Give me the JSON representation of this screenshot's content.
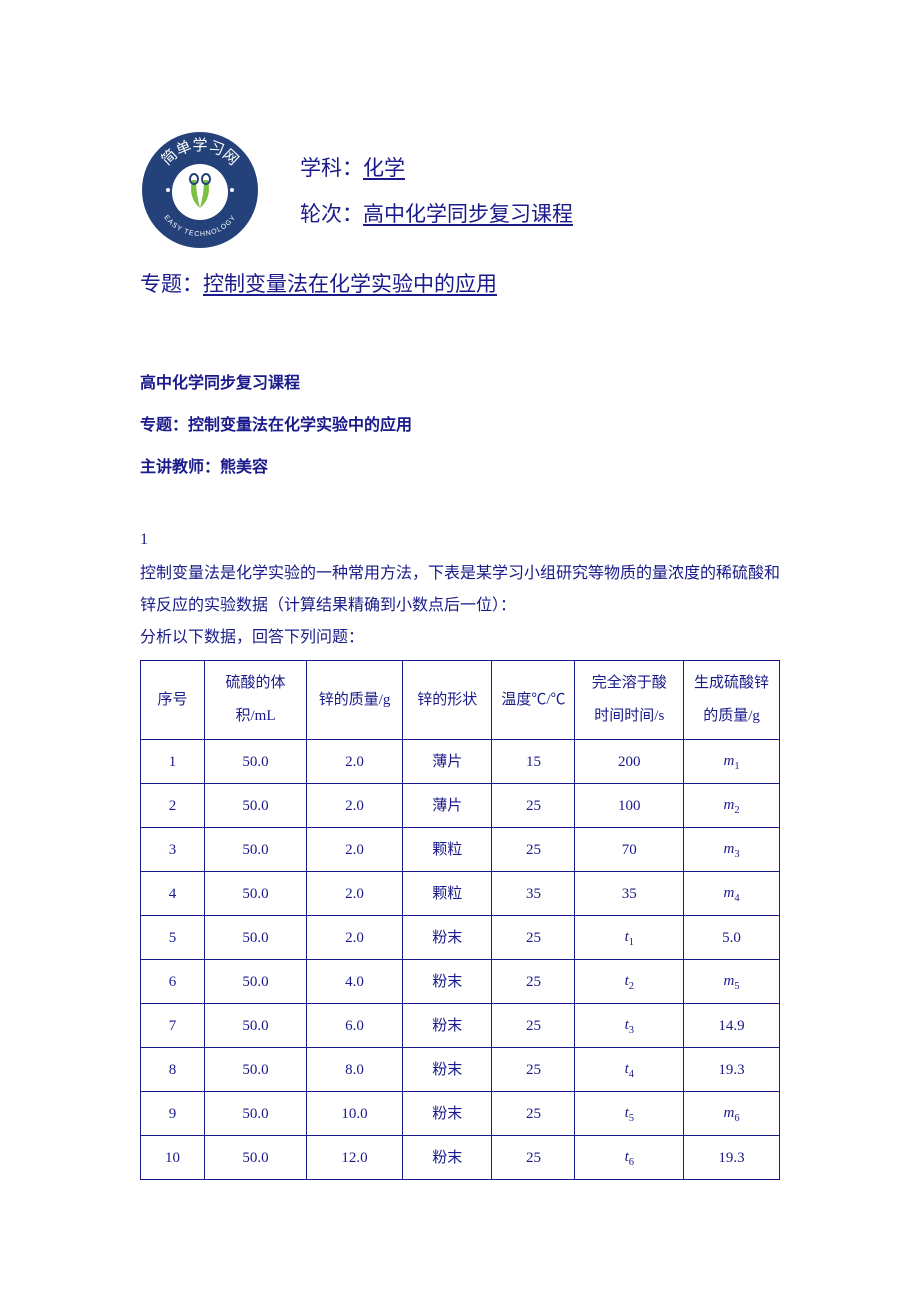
{
  "colors": {
    "text": "#1a1a8a",
    "logo_bg": "#25417a",
    "logo_inner": "#ffffff",
    "logo_accent": "#7bc043",
    "border": "#1a1a8a",
    "background": "#ffffff"
  },
  "logo": {
    "top_text": "简单学习网",
    "bottom_text": "EASY TECHNOLOGY"
  },
  "header": {
    "subject_label": "学科：",
    "subject_value": "化学",
    "round_label": "轮次：",
    "round_value": "高中化学同步复习课程",
    "topic_label": "专题：",
    "topic_value": "控制变量法在化学实验中的应用"
  },
  "meta": {
    "course": "高中化学同步复习课程",
    "topic_line": "专题：控制变量法在化学实验中的应用",
    "teacher_line": "主讲教师：熊美容"
  },
  "question": {
    "number": "1",
    "p1": "控制变量法是化学实验的一种常用方法，下表是某学习小组研究等物质的量浓度的稀硫酸和锌反应的实验数据（计算结果精确到小数点后一位）：",
    "p2": "分析以下数据，回答下列问题："
  },
  "table": {
    "columns": [
      "序号",
      "硫酸的体积/mL",
      "锌的质量/g",
      "锌的形状",
      "温度℃/℃",
      "完全溶于酸时间时间/s",
      "生成硫酸锌的质量/g"
    ],
    "col_widths": [
      "10%",
      "16%",
      "15%",
      "14%",
      "13%",
      "17%",
      "15%"
    ],
    "rows": [
      {
        "idx": "1",
        "vol": "50.0",
        "mass": "2.0",
        "shape": "薄片",
        "temp": "15",
        "time": "200",
        "prod": {
          "var": "m",
          "sub": "1"
        }
      },
      {
        "idx": "2",
        "vol": "50.0",
        "mass": "2.0",
        "shape": "薄片",
        "temp": "25",
        "time": "100",
        "prod": {
          "var": "m",
          "sub": "2"
        }
      },
      {
        "idx": "3",
        "vol": "50.0",
        "mass": "2.0",
        "shape": "颗粒",
        "temp": "25",
        "time": "70",
        "prod": {
          "var": "m",
          "sub": "3"
        }
      },
      {
        "idx": "4",
        "vol": "50.0",
        "mass": "2.0",
        "shape": "颗粒",
        "temp": "35",
        "time": "35",
        "prod": {
          "var": "m",
          "sub": "4"
        }
      },
      {
        "idx": "5",
        "vol": "50.0",
        "mass": "2.0",
        "shape": "粉末",
        "temp": "25",
        "time": {
          "var": "t",
          "sub": "1"
        },
        "prod": "5.0"
      },
      {
        "idx": "6",
        "vol": "50.0",
        "mass": "4.0",
        "shape": "粉末",
        "temp": "25",
        "time": {
          "var": "t",
          "sub": "2"
        },
        "prod": {
          "var": "m",
          "sub": "5"
        }
      },
      {
        "idx": "7",
        "vol": "50.0",
        "mass": "6.0",
        "shape": "粉末",
        "temp": "25",
        "time": {
          "var": "t",
          "sub": "3"
        },
        "prod": "14.9"
      },
      {
        "idx": "8",
        "vol": "50.0",
        "mass": "8.0",
        "shape": "粉末",
        "temp": "25",
        "time": {
          "var": "t",
          "sub": "4"
        },
        "prod": "19.3"
      },
      {
        "idx": "9",
        "vol": "50.0",
        "mass": "10.0",
        "shape": "粉末",
        "temp": "25",
        "time": {
          "var": "t",
          "sub": "5"
        },
        "prod": {
          "var": "m",
          "sub": "6"
        }
      },
      {
        "idx": "10",
        "vol": "50.0",
        "mass": "12.0",
        "shape": "粉末",
        "temp": "25",
        "time": {
          "var": "t",
          "sub": "6"
        },
        "prod": "19.3"
      }
    ]
  }
}
